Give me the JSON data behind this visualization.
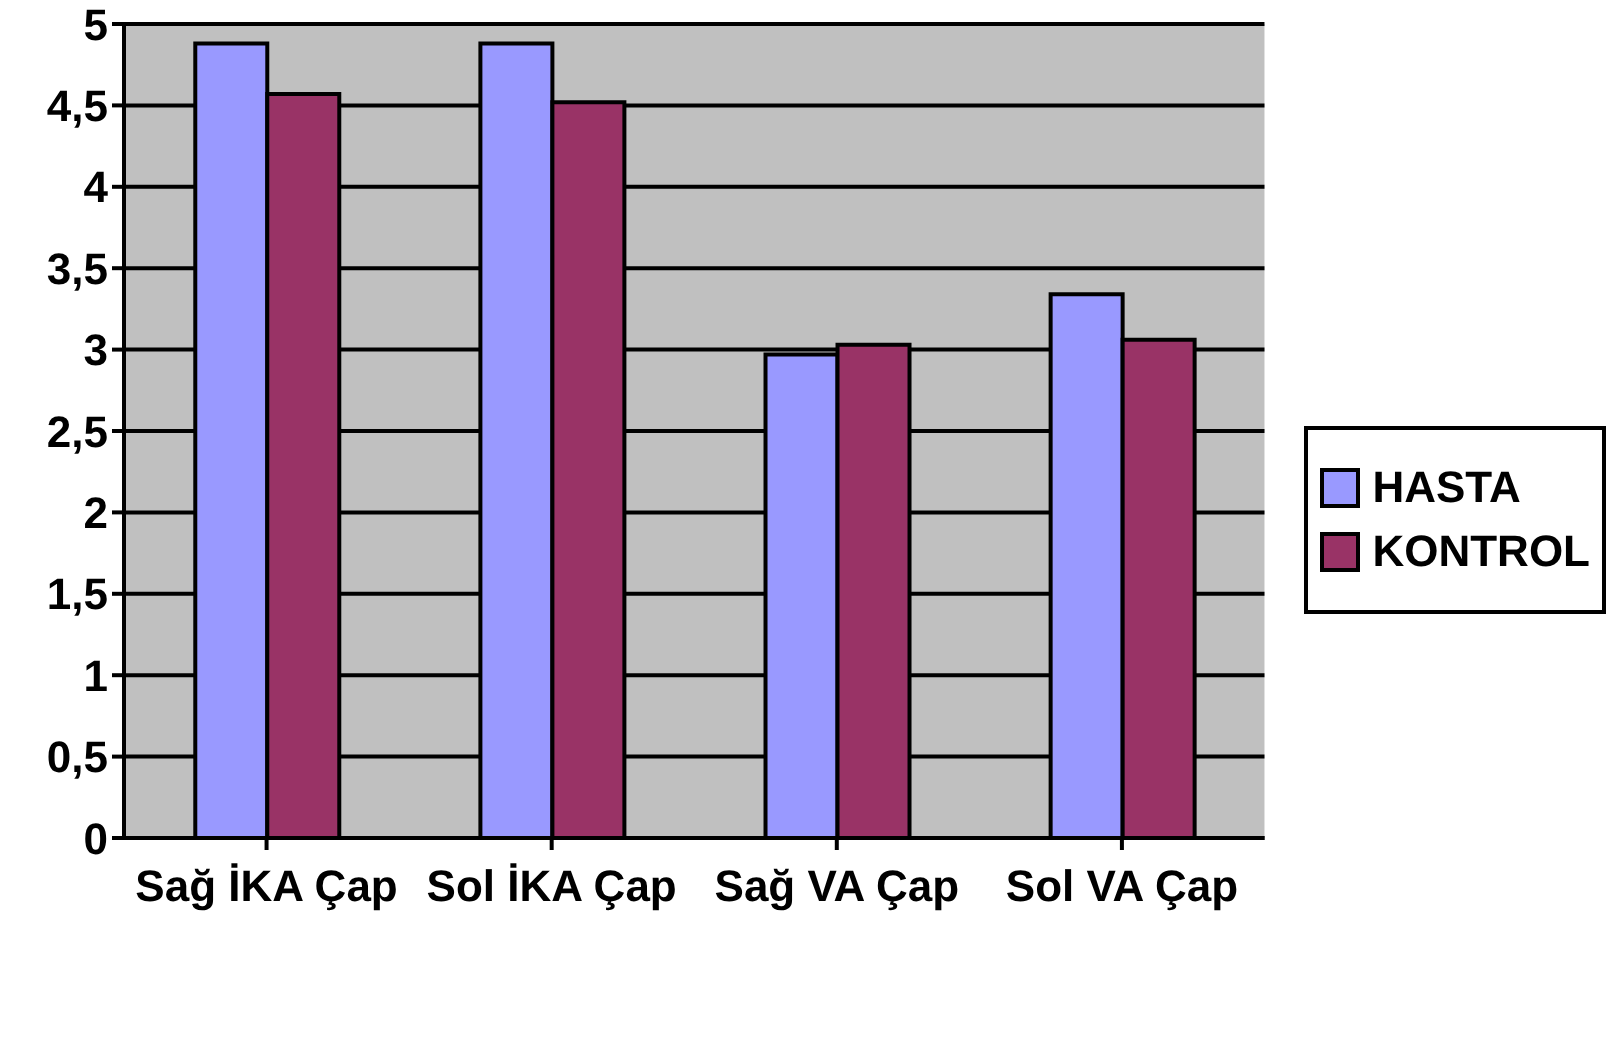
{
  "chart_data": {
    "type": "bar",
    "categories": [
      "Sağ İKA Çap",
      "Sol İKA Çap",
      "Sağ VA Çap",
      "Sol VA Çap"
    ],
    "series": [
      {
        "name": "HASTA",
        "color": "#9999ff",
        "values": [
          4.88,
          4.88,
          2.97,
          3.34
        ]
      },
      {
        "name": "KONTROL",
        "color": "#993366",
        "values": [
          4.57,
          4.52,
          3.03,
          3.06
        ]
      }
    ],
    "ylim": [
      0,
      5
    ],
    "yticks": [
      0,
      {
        "value": 0.5,
        "label": "0,5"
      },
      1,
      {
        "value": 1.5,
        "label": "1,5"
      },
      2,
      {
        "value": 2.5,
        "label": "2,5"
      },
      3,
      {
        "value": 3.5,
        "label": "3,5"
      },
      4,
      {
        "value": 4.5,
        "label": "4,5"
      },
      5
    ],
    "grid": "y",
    "legend": "right"
  }
}
